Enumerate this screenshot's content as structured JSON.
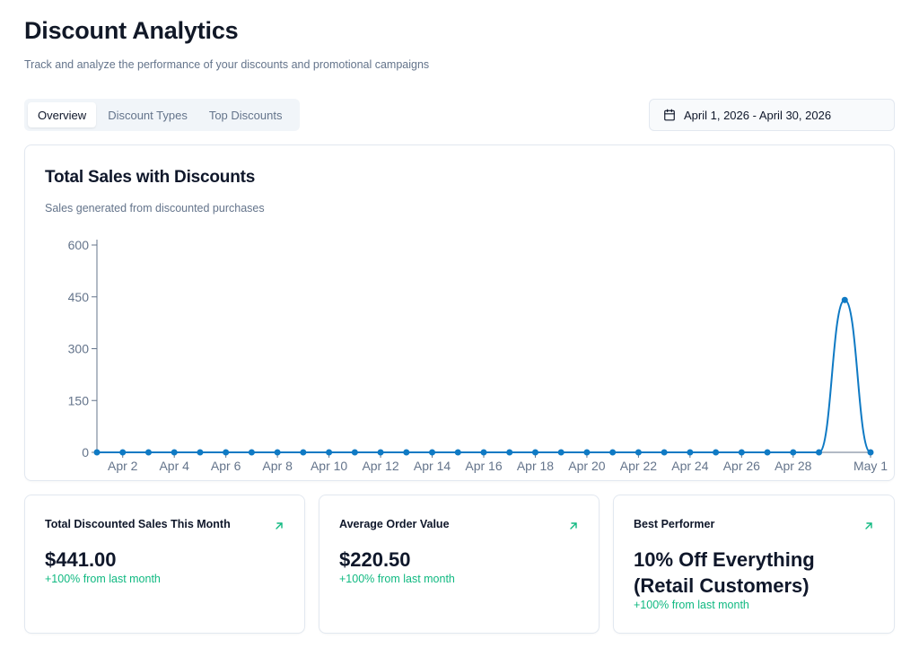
{
  "header": {
    "title": "Discount Analytics",
    "subtitle": "Track and analyze the performance of your discounts and promotional campaigns"
  },
  "tabs": [
    {
      "label": "Overview",
      "active": true
    },
    {
      "label": "Discount Types",
      "active": false
    },
    {
      "label": "Top Discounts",
      "active": false
    }
  ],
  "date_range": {
    "icon": "calendar-icon",
    "label": "April 1, 2026 - April 30, 2026"
  },
  "chart_card": {
    "title": "Total Sales with Discounts",
    "subtitle": "Sales generated from discounted purchases"
  },
  "chart_data": {
    "type": "line",
    "title": "Total Sales with Discounts",
    "x": [
      "Apr 1",
      "Apr 2",
      "Apr 3",
      "Apr 4",
      "Apr 5",
      "Apr 6",
      "Apr 7",
      "Apr 8",
      "Apr 9",
      "Apr 10",
      "Apr 11",
      "Apr 12",
      "Apr 13",
      "Apr 14",
      "Apr 15",
      "Apr 16",
      "Apr 17",
      "Apr 18",
      "Apr 19",
      "Apr 20",
      "Apr 21",
      "Apr 22",
      "Apr 23",
      "Apr 24",
      "Apr 25",
      "Apr 26",
      "Apr 27",
      "Apr 28",
      "Apr 29",
      "Apr 30",
      "May 1"
    ],
    "values": [
      0,
      0,
      0,
      0,
      0,
      0,
      0,
      0,
      0,
      0,
      0,
      0,
      0,
      0,
      0,
      0,
      0,
      0,
      0,
      0,
      0,
      0,
      0,
      0,
      0,
      0,
      0,
      0,
      0,
      441,
      0
    ],
    "x_tick_labels": [
      "Apr 2",
      "Apr 4",
      "Apr 6",
      "Apr 8",
      "Apr 10",
      "Apr 12",
      "Apr 14",
      "Apr 16",
      "Apr 18",
      "Apr 20",
      "Apr 22",
      "Apr 24",
      "Apr 26",
      "Apr 28",
      "May 1"
    ],
    "y_ticks": [
      0,
      150,
      300,
      450,
      600
    ],
    "ylim": [
      0,
      600
    ],
    "grid": false,
    "line_color": "#0f7ac4"
  },
  "stats": [
    {
      "title": "Total Discounted Sales This Month",
      "value": "$441.00",
      "change": "+100% from last month",
      "icon": "trend-up-icon"
    },
    {
      "title": "Average Order Value",
      "value": "$220.50",
      "change": "+100% from last month",
      "icon": "trend-up-icon"
    },
    {
      "title": "Best Performer",
      "value": "10% Off Everything (Retail Customers)",
      "change": "+100% from last month",
      "icon": "trend-up-icon"
    }
  ],
  "colors": {
    "accent_green": "#10b981",
    "line_blue": "#0f7ac4"
  }
}
